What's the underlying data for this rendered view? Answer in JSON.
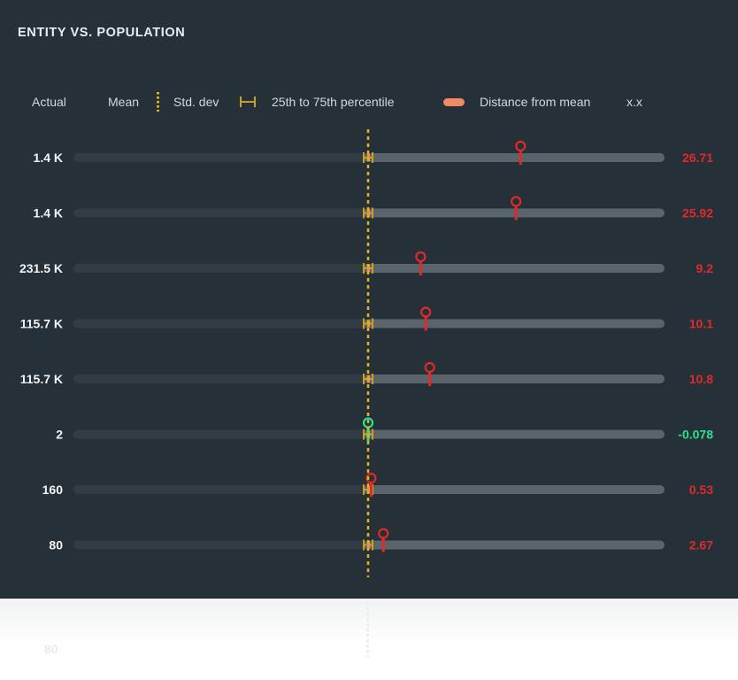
{
  "title": "ENTITY VS. POPULATION",
  "legend": {
    "actual": "Actual",
    "mean": "Mean",
    "std_dev": "Std. dev",
    "percentile": "25th to 75th percentile",
    "distance": "Distance from mean",
    "distance_sample": "x.x"
  },
  "colors": {
    "background": "#263038",
    "track_left": "#323c44",
    "track_right": "#5c646b",
    "mean_line": "#e3b418",
    "positive": "#e02a2a",
    "negative": "#2ee08e",
    "percentile": "#f28866",
    "label": "#f2f4f5"
  },
  "chart_data": {
    "type": "dot-plot",
    "rows": [
      {
        "actual": "1.4 K",
        "distance": 26.71,
        "distance_label": "26.71"
      },
      {
        "actual": "1.4 K",
        "distance": 25.92,
        "distance_label": "25.92"
      },
      {
        "actual": "231.5 K",
        "distance": 9.2,
        "distance_label": "9.2"
      },
      {
        "actual": "115.7 K",
        "distance": 10.1,
        "distance_label": "10.1"
      },
      {
        "actual": "115.7 K",
        "distance": 10.8,
        "distance_label": "10.8"
      },
      {
        "actual": "2",
        "distance": -0.078,
        "distance_label": "-0.078"
      },
      {
        "actual": "160",
        "distance": 0.53,
        "distance_label": "0.53"
      },
      {
        "actual": "80",
        "distance": 2.67,
        "distance_label": "2.67"
      }
    ]
  },
  "ghost_row": {
    "actual": "80"
  }
}
